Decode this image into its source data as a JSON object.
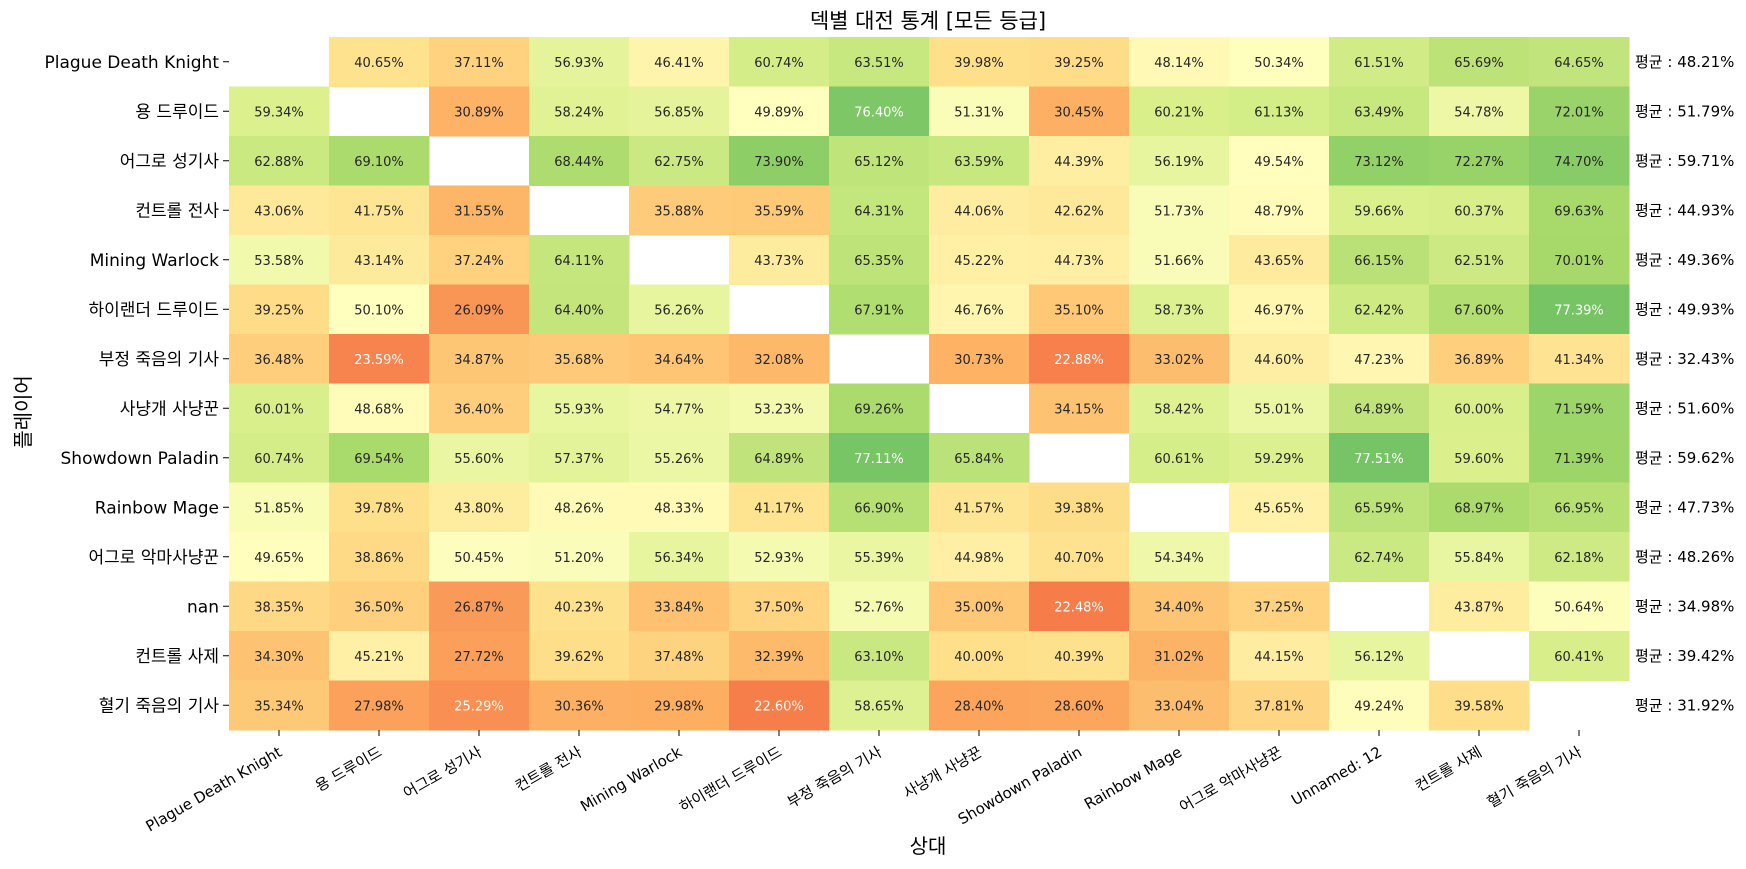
{
  "chart_data": {
    "type": "heatmap",
    "title": "덱별 대전 통계 [모든 등급]",
    "xlabel": "상대",
    "ylabel": "플레이어",
    "value_format": "percent",
    "value_range": [
      0,
      100
    ],
    "colormap": "RdYlGn",
    "grid": false,
    "rows": [
      "Plague Death Knight",
      "용 드루이드",
      "어그로 성기사",
      "컨트롤 전사",
      "Mining Warlock",
      "하이랜더 드루이드",
      "부정 죽음의 기사",
      "사냥개 사냥꾼",
      "Showdown Paladin",
      "Rainbow Mage",
      "어그로 악마사냥꾼",
      "nan",
      "컨트롤 사제",
      "혈기 죽음의 기사"
    ],
    "columns": [
      "Plague Death Knight",
      "용 드루이드",
      "어그로 성기사",
      "컨트롤 전사",
      "Mining Warlock",
      "하이랜더 드루이드",
      "부정 죽음의 기사",
      "사냥개 사냥꾼",
      "Showdown Paladin",
      "Rainbow Mage",
      "어그로 악마사냥꾼",
      "Unnamed: 12",
      "컨트롤 사제",
      "혈기 죽음의 기사"
    ],
    "values": [
      [
        null,
        40.65,
        37.11,
        56.93,
        46.41,
        60.74,
        63.51,
        39.98,
        39.25,
        48.14,
        50.34,
        61.51,
        65.69,
        64.65
      ],
      [
        59.34,
        null,
        30.89,
        58.24,
        56.85,
        49.89,
        76.4,
        51.31,
        30.45,
        60.21,
        61.13,
        63.49,
        54.78,
        72.01
      ],
      [
        62.88,
        69.1,
        null,
        68.44,
        62.75,
        73.9,
        65.12,
        63.59,
        44.39,
        56.19,
        49.54,
        73.12,
        72.27,
        74.7
      ],
      [
        43.06,
        41.75,
        31.55,
        null,
        35.88,
        35.59,
        64.31,
        44.06,
        42.62,
        51.73,
        48.79,
        59.66,
        60.37,
        69.63
      ],
      [
        53.58,
        43.14,
        37.24,
        64.11,
        null,
        43.73,
        65.35,
        45.22,
        44.73,
        51.66,
        43.65,
        66.15,
        62.51,
        70.01
      ],
      [
        39.25,
        50.1,
        26.09,
        64.4,
        56.26,
        null,
        67.91,
        46.76,
        35.1,
        58.73,
        46.97,
        62.42,
        67.6,
        77.39
      ],
      [
        36.48,
        23.59,
        34.87,
        35.68,
        34.64,
        32.08,
        null,
        30.73,
        22.88,
        33.02,
        44.6,
        47.23,
        36.89,
        41.34
      ],
      [
        60.01,
        48.68,
        36.4,
        55.93,
        54.77,
        53.23,
        69.26,
        null,
        34.15,
        58.42,
        55.01,
        64.89,
        60.0,
        71.59
      ],
      [
        60.74,
        69.54,
        55.6,
        57.37,
        55.26,
        64.89,
        77.11,
        65.84,
        null,
        60.61,
        59.29,
        77.51,
        59.6,
        71.39
      ],
      [
        51.85,
        39.78,
        43.8,
        48.26,
        48.33,
        41.17,
        66.9,
        41.57,
        39.38,
        null,
        45.65,
        65.59,
        68.97,
        66.95
      ],
      [
        49.65,
        38.86,
        50.45,
        51.2,
        56.34,
        52.93,
        55.39,
        44.98,
        40.7,
        54.34,
        null,
        62.74,
        55.84,
        62.18
      ],
      [
        38.35,
        36.5,
        26.87,
        40.23,
        33.84,
        37.5,
        52.76,
        35.0,
        22.48,
        34.4,
        37.25,
        null,
        43.87,
        50.64
      ],
      [
        34.3,
        45.21,
        27.72,
        39.62,
        37.48,
        32.39,
        63.1,
        40.0,
        40.39,
        31.02,
        44.15,
        56.12,
        null,
        60.41
      ],
      [
        35.34,
        27.98,
        25.29,
        30.36,
        29.98,
        22.6,
        58.65,
        28.4,
        28.6,
        33.04,
        37.81,
        49.24,
        39.58,
        null
      ]
    ],
    "cell_labels": [
      [
        "",
        "40.65%",
        "37.11%",
        "56.93%",
        "46.41%",
        "60.74%",
        "63.51%",
        "39.98%",
        "39.25%",
        "48.14%",
        "50.34%",
        "61.51%",
        "65.69%",
        "64.65%"
      ],
      [
        "59.34%",
        "",
        "30.89%",
        "58.24%",
        "56.85%",
        "49.89%",
        "76.40%",
        "51.31%",
        "30.45%",
        "60.21%",
        "61.13%",
        "63.49%",
        "54.78%",
        "72.01%"
      ],
      [
        "62.88%",
        "69.10%",
        "",
        "68.44%",
        "62.75%",
        "73.90%",
        "65.12%",
        "63.59%",
        "44.39%",
        "56.19%",
        "49.54%",
        "73.12%",
        "72.27%",
        "74.70%"
      ],
      [
        "43.06%",
        "41.75%",
        "31.55%",
        "",
        "35.88%",
        "35.59%",
        "64.31%",
        "44.06%",
        "42.62%",
        "51.73%",
        "48.79%",
        "59.66%",
        "60.37%",
        "69.63%"
      ],
      [
        "53.58%",
        "43.14%",
        "37.24%",
        "64.11%",
        "",
        "43.73%",
        "65.35%",
        "45.22%",
        "44.73%",
        "51.66%",
        "43.65%",
        "66.15%",
        "62.51%",
        "70.01%"
      ],
      [
        "39.25%",
        "50.10%",
        "26.09%",
        "64.40%",
        "56.26%",
        "",
        "67.91%",
        "46.76%",
        "35.10%",
        "58.73%",
        "46.97%",
        "62.42%",
        "67.60%",
        "77.39%"
      ],
      [
        "36.48%",
        "23.59%",
        "34.87%",
        "35.68%",
        "34.64%",
        "32.08%",
        "",
        "30.73%",
        "22.88%",
        "33.02%",
        "44.60%",
        "47.23%",
        "36.89%",
        "41.34%"
      ],
      [
        "60.01%",
        "48.68%",
        "36.40%",
        "55.93%",
        "54.77%",
        "53.23%",
        "69.26%",
        "",
        "34.15%",
        "58.42%",
        "55.01%",
        "64.89%",
        "60.00%",
        "71.59%"
      ],
      [
        "60.74%",
        "69.54%",
        "55.60%",
        "57.37%",
        "55.26%",
        "64.89%",
        "77.11%",
        "65.84%",
        "",
        "60.61%",
        "59.29%",
        "77.51%",
        "59.60%",
        "71.39%"
      ],
      [
        "51.85%",
        "39.78%",
        "43.80%",
        "48.26%",
        "48.33%",
        "41.17%",
        "66.90%",
        "41.57%",
        "39.38%",
        "",
        "45.65%",
        "65.59%",
        "68.97%",
        "66.95%"
      ],
      [
        "49.65%",
        "38.86%",
        "50.45%",
        "51.20%",
        "56.34%",
        "52.93%",
        "55.39%",
        "44.98%",
        "40.70%",
        "54.34%",
        "",
        "62.74%",
        "55.84%",
        "62.18%"
      ],
      [
        "38.35%",
        "36.50%",
        "26.87%",
        "40.23%",
        "33.84%",
        "37.50%",
        "52.76%",
        "35.00%",
        "22.48%",
        "34.40%",
        "37.25%",
        "",
        "43.87%",
        "50.64%"
      ],
      [
        "34.30%",
        "45.21%",
        "27.72%",
        "39.62%",
        "37.48%",
        "32.39%",
        "63.10%",
        "40.00%",
        "40.39%",
        "31.02%",
        "44.15%",
        "56.12%",
        "",
        "60.41%"
      ],
      [
        "35.34%",
        "27.98%",
        "25.29%",
        "30.36%",
        "29.98%",
        "22.60%",
        "58.65%",
        "28.40%",
        "28.60%",
        "33.04%",
        "37.81%",
        "49.24%",
        "39.58%",
        ""
      ]
    ],
    "row_averages": [
      "평균 : 48.21%",
      "평균 : 51.79%",
      "평균 : 59.71%",
      "평균 : 44.93%",
      "평균 : 49.36%",
      "평균 : 49.93%",
      "평균 : 32.43%",
      "평균 : 51.60%",
      "평균 : 59.62%",
      "평균 : 47.73%",
      "평균 : 48.26%",
      "평균 : 34.98%",
      "평균 : 39.42%",
      "평균 : 31.92%"
    ]
  }
}
